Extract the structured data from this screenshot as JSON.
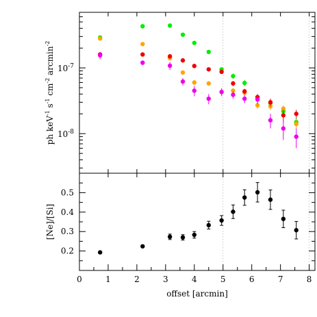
{
  "chart_data": [
    {
      "type": "scatter",
      "title": "",
      "ylabel_parts": [
        "ph keV",
        "-1",
        " s",
        "-1",
        " cm",
        "-2",
        " arcmin",
        "-2"
      ],
      "yscale": "log",
      "ylim": [
        2.5e-09,
        7e-07
      ],
      "xlim": [
        0,
        8.2
      ],
      "ytick_labels": [
        {
          "value": 1e-07,
          "base": "10",
          "exp": "-7"
        },
        {
          "value": 1e-08,
          "base": "10",
          "exp": "-8"
        }
      ],
      "guide_lines_x": [
        5,
        8
      ],
      "series": [
        {
          "color": "#00ee00",
          "x": [
            0.72,
            2.2,
            3.15,
            3.6,
            4.0,
            4.5,
            4.95,
            5.35,
            5.75,
            6.2,
            6.65,
            7.1,
            7.55
          ],
          "y": [
            2.9e-07,
            4.3e-07,
            4.4e-07,
            3.2e-07,
            2.4e-07,
            1.75e-07,
            9.5e-08,
            7.5e-08,
            5.9e-08,
            3.5e-08,
            2.9e-08,
            2.2e-08,
            1.5e-08
          ],
          "err": [
            1.5e-08,
            1e-08,
            1e-08,
            1e-08,
            1e-08,
            1e-08,
            1e-09,
            7e-09,
            6e-09,
            4e-09,
            3e-09,
            3e-09,
            2e-09
          ]
        },
        {
          "color": "#ffa500",
          "x": [
            0.72,
            2.2,
            3.15,
            3.6,
            4.0,
            4.5,
            4.95,
            5.35,
            5.75,
            6.2,
            6.65,
            7.1,
            7.55
          ],
          "y": [
            2.8e-07,
            2.3e-07,
            1.4e-07,
            8.5e-08,
            6e-08,
            5.8e-08,
            4.3e-08,
            4.5e-08,
            4.2e-08,
            2.7e-08,
            2.6e-08,
            2.4e-08,
            1.4e-08
          ],
          "err": [
            1e-08,
            1e-08,
            8e-09,
            5e-09,
            5e-09,
            4e-09,
            4e-09,
            4e-09,
            4e-09,
            3e-09,
            3e-09,
            3e-09,
            2e-09
          ]
        },
        {
          "color": "#ee0000",
          "x": [
            0.72,
            2.2,
            3.15,
            3.6,
            4.0,
            4.5,
            4.95,
            5.35,
            5.75,
            6.2,
            6.65,
            7.1,
            7.55
          ],
          "y": [
            1.6e-07,
            1.6e-07,
            1.5e-07,
            1.3e-07,
            1.07e-07,
            9.5e-08,
            8.7e-08,
            5.8e-08,
            4.4e-08,
            3.6e-08,
            3e-08,
            1.9e-08,
            2e-08
          ],
          "err": [
            1e-08,
            8e-09,
            8e-09,
            8e-09,
            7e-09,
            6e-09,
            6e-09,
            5e-09,
            4e-09,
            4e-09,
            4e-09,
            4e-09,
            3e-09
          ]
        },
        {
          "color": "#ee00ee",
          "x": [
            0.72,
            2.2,
            3.15,
            3.6,
            4.0,
            4.5,
            4.95,
            5.35,
            5.75,
            6.2,
            6.65,
            7.1,
            7.55
          ],
          "y": [
            1.55e-07,
            1.2e-07,
            1.08e-07,
            6.2e-08,
            4.5e-08,
            3.4e-08,
            4.3e-08,
            3.9e-08,
            3.4e-08,
            3.3e-08,
            1.6e-08,
            1.2e-08,
            9e-09
          ],
          "err": [
            2e-08,
            1e-08,
            1.5e-08,
            8e-09,
            8e-09,
            6e-09,
            6e-09,
            5e-09,
            5e-09,
            5e-09,
            4e-09,
            4e-09,
            3e-09
          ]
        }
      ]
    },
    {
      "type": "scatter",
      "title": "",
      "xlabel": "offset [arcmin]",
      "ylabel": "[Ne]/[Si]",
      "xlim": [
        0,
        8.2
      ],
      "ylim": [
        0.1,
        0.6
      ],
      "xticks": [
        0,
        1,
        2,
        3,
        4,
        5,
        6,
        7,
        8
      ],
      "yticks": [
        0.2,
        0.3,
        0.4,
        0.5
      ],
      "guide_lines_x": [
        5,
        8
      ],
      "series": [
        {
          "color": "#000000",
          "x": [
            0.72,
            2.2,
            3.15,
            3.6,
            4.0,
            4.5,
            4.95,
            5.35,
            5.75,
            6.2,
            6.65,
            7.1,
            7.55
          ],
          "y": [
            0.193,
            0.224,
            0.273,
            0.27,
            0.283,
            0.333,
            0.357,
            0.402,
            0.475,
            0.502,
            0.464,
            0.365,
            0.307
          ],
          "err": [
            0.005,
            0.006,
            0.014,
            0.014,
            0.017,
            0.02,
            0.025,
            0.035,
            0.04,
            0.05,
            0.05,
            0.045,
            0.045
          ]
        }
      ]
    }
  ]
}
